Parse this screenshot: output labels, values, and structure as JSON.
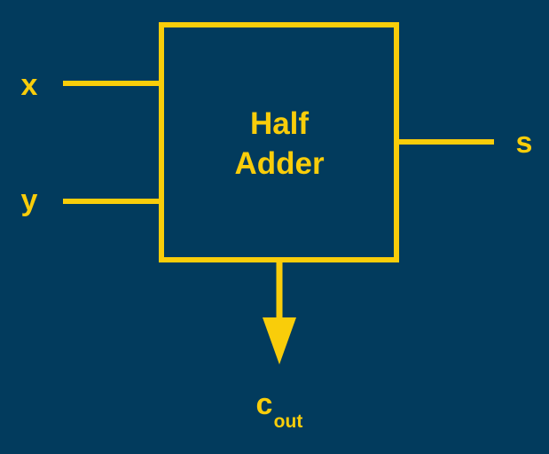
{
  "diagram": {
    "block_line1": "Half",
    "block_line2": "Adder",
    "inputs": [
      "x",
      "y"
    ],
    "output_sum": "s",
    "output_carry": "c",
    "output_carry_subscript": "out"
  },
  "colors": {
    "background": "#023b5d",
    "stroke": "#f9cd0a"
  }
}
